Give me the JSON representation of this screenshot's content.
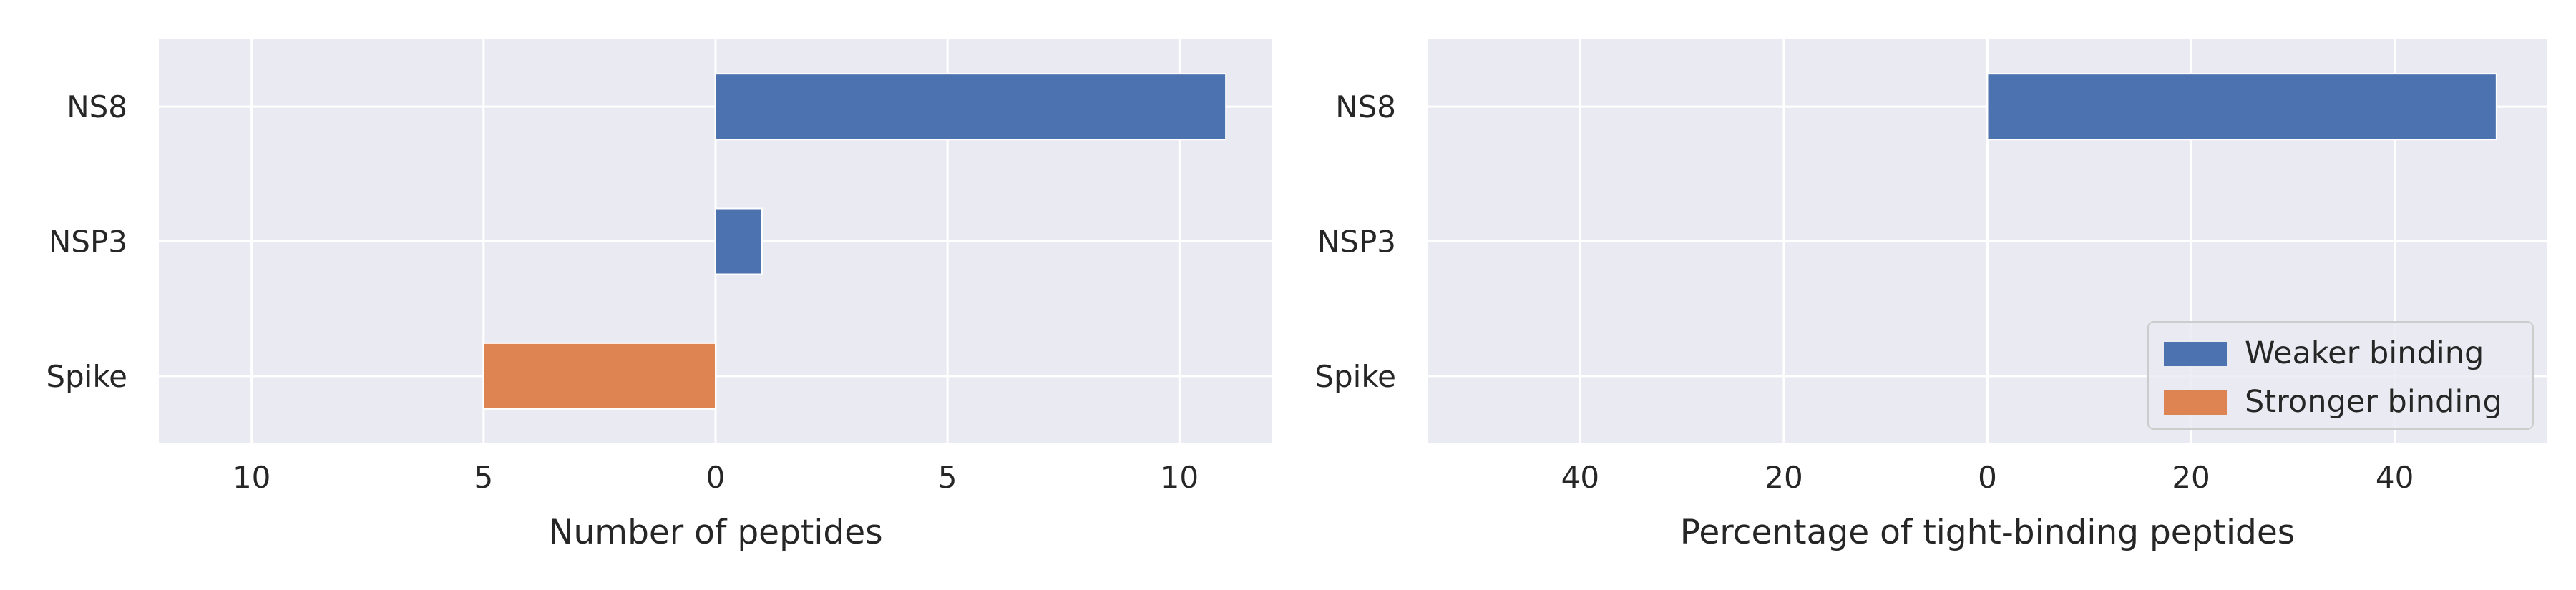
{
  "colors": {
    "weaker": "#4C72B0",
    "stronger": "#DD8452",
    "plot_bg": "#EAEAF2",
    "grid": "#FFFFFF"
  },
  "chart_data": [
    {
      "type": "bar",
      "orientation": "horizontal",
      "categories": [
        "NS8",
        "NSP3",
        "Spike"
      ],
      "series": [
        {
          "name": "Weaker binding",
          "values": [
            11,
            1,
            0
          ]
        },
        {
          "name": "Stronger binding",
          "values": [
            0,
            0,
            -5
          ]
        }
      ],
      "title": "",
      "xlabel": "Number of peptides",
      "ylabel": "",
      "xlim": [
        -12,
        12
      ],
      "xticks": [
        -10,
        -5,
        0,
        5,
        10
      ],
      "xtick_labels": [
        "10",
        "5",
        "0",
        "5",
        "10"
      ],
      "grid": true,
      "legend": "none"
    },
    {
      "type": "bar",
      "orientation": "horizontal",
      "categories": [
        "NS8",
        "NSP3",
        "Spike"
      ],
      "series": [
        {
          "name": "Weaker binding",
          "values": [
            50,
            0,
            0
          ]
        },
        {
          "name": "Stronger binding",
          "values": [
            0,
            0,
            0
          ]
        }
      ],
      "title": "",
      "xlabel": "Percentage of tight-binding peptides",
      "ylabel": "",
      "xlim": [
        -55,
        55
      ],
      "xticks": [
        -40,
        -20,
        0,
        20,
        40
      ],
      "xtick_labels": [
        "40",
        "20",
        "0",
        "20",
        "40"
      ],
      "grid": true,
      "legend": "lower-right"
    }
  ]
}
